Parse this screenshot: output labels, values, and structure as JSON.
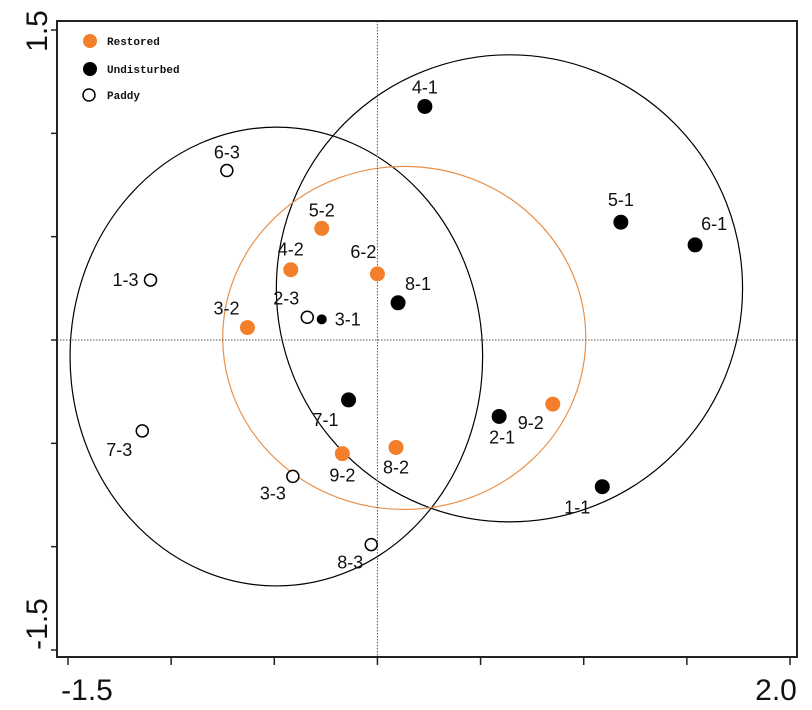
{
  "chart_data": {
    "type": "scatter",
    "xlim": [
      -1.5,
      2.0
    ],
    "ylim": [
      -1.5,
      1.5
    ],
    "x_tick_labels": [
      "-1.5",
      "2.0"
    ],
    "y_tick_labels": [
      "1.5",
      "-1.5"
    ],
    "x_ticks": [
      -1.5,
      -1.0,
      -0.5,
      0.0,
      0.5,
      1.0,
      1.5,
      2.0
    ],
    "y_ticks": [
      -1.5,
      -1.0,
      -0.5,
      0.0,
      0.5,
      1.0,
      1.5
    ],
    "reference_lines": {
      "x": 0,
      "y": 0,
      "style": "dotted"
    },
    "grid": false,
    "legend_placement": "top-left",
    "series": [
      {
        "name": "Restored",
        "color": "#f47f2a",
        "marker": "filled-circle",
        "points": [
          {
            "label": "5-2",
            "x": -0.27,
            "y": 0.54
          },
          {
            "label": "4-2",
            "x": -0.42,
            "y": 0.34
          },
          {
            "label": "6-2",
            "x": 0.0,
            "y": 0.32
          },
          {
            "label": "3-2",
            "x": -0.63,
            "y": 0.06
          },
          {
            "label": "9-2",
            "x": 0.85,
            "y": -0.31
          },
          {
            "label": "9-2",
            "x": -0.17,
            "y": -0.55
          },
          {
            "label": "8-2",
            "x": 0.09,
            "y": -0.52
          }
        ]
      },
      {
        "name": "Undisturbed",
        "color": "#000000",
        "marker": "filled-circle",
        "points": [
          {
            "label": "4-1",
            "x": 0.23,
            "y": 1.13
          },
          {
            "label": "5-1",
            "x": 1.18,
            "y": 0.57
          },
          {
            "label": "6-1",
            "x": 1.54,
            "y": 0.46
          },
          {
            "label": "8-1",
            "x": 0.1,
            "y": 0.18
          },
          {
            "label": "3-1",
            "x": -0.27,
            "y": 0.1
          },
          {
            "label": "7-1",
            "x": -0.14,
            "y": -0.29
          },
          {
            "label": "2-1",
            "x": 0.59,
            "y": -0.37
          },
          {
            "label": "1-1",
            "x": 1.09,
            "y": -0.71
          }
        ]
      },
      {
        "name": "Paddy",
        "color": "#000000",
        "marker": "open-circle",
        "points": [
          {
            "label": "6-3",
            "x": -0.73,
            "y": 0.82
          },
          {
            "label": "1-3",
            "x": -1.1,
            "y": 0.29
          },
          {
            "label": "2-3",
            "x": -0.34,
            "y": 0.11
          },
          {
            "label": "7-3",
            "x": -1.14,
            "y": -0.44
          },
          {
            "label": "3-3",
            "x": -0.41,
            "y": -0.66
          },
          {
            "label": "8-3",
            "x": -0.03,
            "y": -0.99
          }
        ]
      }
    ],
    "ellipses": [
      {
        "group": "Paddy",
        "color": "#000000",
        "cx": -0.49,
        "cy": -0.08,
        "rx": 1.0,
        "ry": 1.11
      },
      {
        "group": "Undisturbed",
        "color": "#000000",
        "cx": 0.64,
        "cy": 0.25,
        "rx": 1.13,
        "ry": 1.13
      },
      {
        "group": "Restored",
        "color": "#e8904a",
        "cx": 0.13,
        "cy": 0.01,
        "rx": 0.88,
        "ry": 0.83
      }
    ]
  }
}
